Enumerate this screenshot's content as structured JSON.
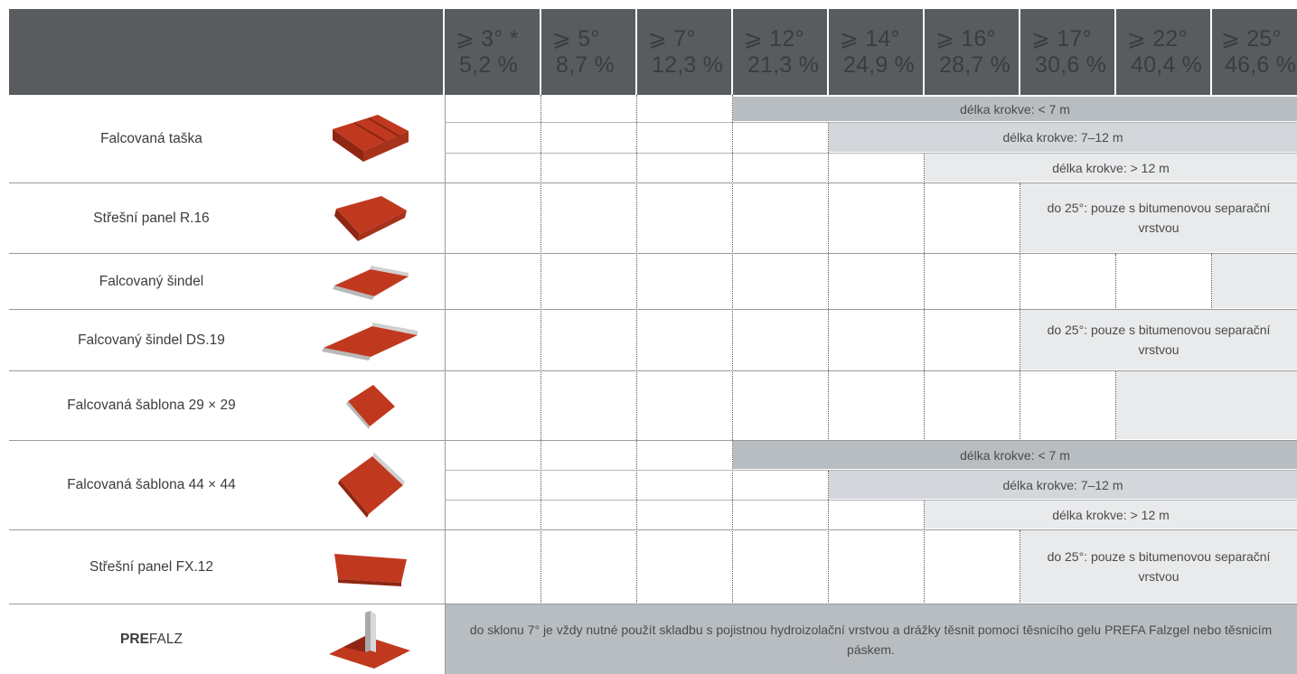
{
  "columns": [
    {
      "angle": "⩾ 3° *",
      "percent": "5,2 %"
    },
    {
      "angle": "⩾ 5°",
      "percent": "8,7 %"
    },
    {
      "angle": "⩾ 7°",
      "percent": "12,3 %"
    },
    {
      "angle": "⩾ 12°",
      "percent": "21,3 %"
    },
    {
      "angle": "⩾ 14°",
      "percent": "24,9 %"
    },
    {
      "angle": "⩾ 16°",
      "percent": "28,7 %"
    },
    {
      "angle": "⩾ 17°",
      "percent": "30,6 %"
    },
    {
      "angle": "⩾ 22°",
      "percent": "40,4 %"
    },
    {
      "angle": "⩾ 25°",
      "percent": "46,6 %"
    }
  ],
  "products": [
    {
      "name": "Falcovaná taška",
      "thumb": "tile-icon"
    },
    {
      "name": "Střešní panel R.16",
      "thumb": "panel-icon"
    },
    {
      "name": "Falcovaný šindel",
      "thumb": "shingle-icon"
    },
    {
      "name": "Falcovaný šindel DS.19",
      "thumb": "shingle-wide-icon"
    },
    {
      "name": "Falcovaná šablona 29 × 29",
      "thumb": "diamond-small-icon"
    },
    {
      "name": "Falcovaná šablona 44 × 44",
      "thumb": "diamond-large-icon"
    },
    {
      "name": "Střešní panel FX.12",
      "thumb": "panel-fx-icon"
    },
    {
      "name_bold": "PRE",
      "name_rest": "FALZ",
      "thumb": "prefalz-icon"
    }
  ],
  "bands": {
    "rafter_lt7": "délka krokve: < 7 m",
    "rafter_7_12": "délka krokve: 7–12 m",
    "rafter_gt12": "délka krokve: > 12 m",
    "bitumen_note": "do 25°: pouze s bitumenovou separační vrstvou"
  },
  "prefalz_note": "do sklonu 7° je vždy nutné použít skladbu s pojistnou hydroizolační vrstvou a drážky těsnit pomocí těsnicího gelu PREFA Falzgel nebo těsnicím páskem.",
  "colors": {
    "header_bg": "#595c5f",
    "band_dark": "#b8bdc2",
    "band_mid": "#d3d7db",
    "band_light": "#e8eaec",
    "product_red": "#c0391f"
  }
}
